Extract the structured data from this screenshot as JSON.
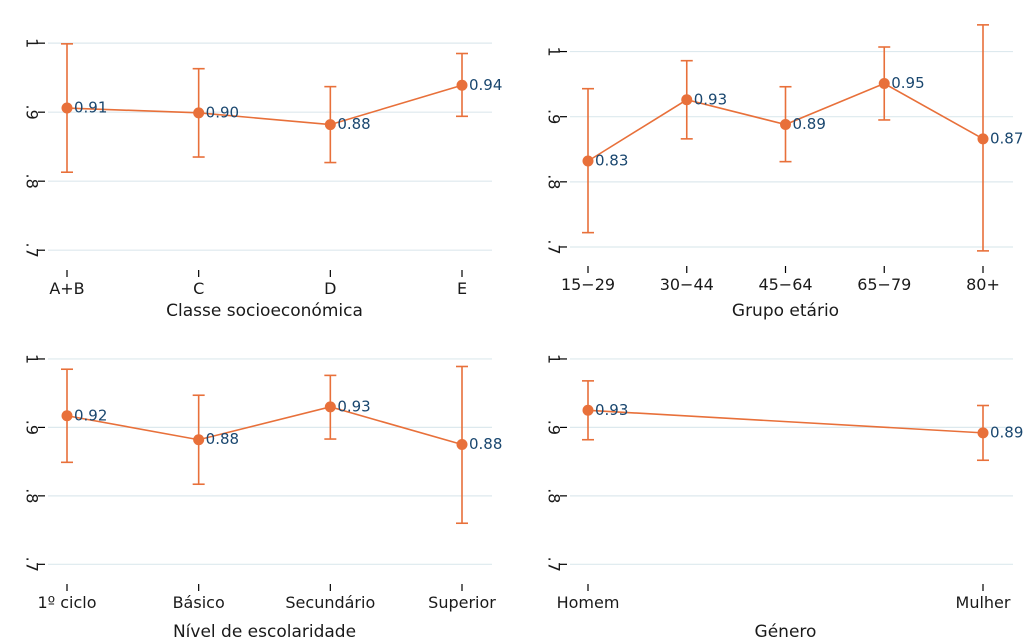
{
  "colors": {
    "series": "#e8703a",
    "label": "#1a476f",
    "grid": "#dde9ee",
    "axis": "#000000"
  },
  "chart_data": [
    {
      "type": "scatter",
      "xlabel": "Classe socioeconómica",
      "ylabel": "",
      "categories": [
        "A+B",
        "C",
        "D",
        "E"
      ],
      "values": [
        0.906,
        0.899,
        0.882,
        0.939
      ],
      "value_labels": [
        "0.91",
        "0.90",
        "0.88",
        "0.94"
      ],
      "ci_low": [
        0.813,
        0.835,
        0.827,
        0.894
      ],
      "ci_high": [
        0.999,
        0.963,
        0.937,
        0.985
      ],
      "yticks": [
        0.7,
        0.8,
        0.9,
        1.0
      ],
      "ytick_labels": [
        ".7",
        ".8",
        ".9",
        "1"
      ],
      "ylim": [
        0.68,
        1.035
      ],
      "grid": true,
      "connected": true
    },
    {
      "type": "scatter",
      "xlabel": "Grupo etário",
      "ylabel": "",
      "categories": [
        "15−29",
        "30−44",
        "45−64",
        "65−79",
        "80+"
      ],
      "values": [
        0.832,
        0.926,
        0.888,
        0.951,
        0.866
      ],
      "value_labels": [
        "0.83",
        "0.93",
        "0.89",
        "0.95",
        "0.87"
      ],
      "ci_low": [
        0.722,
        0.866,
        0.831,
        0.895,
        0.694
      ],
      "ci_high": [
        0.943,
        0.986,
        0.946,
        1.007,
        1.041
      ],
      "yticks": [
        0.7,
        0.8,
        0.9,
        1.0
      ],
      "ytick_labels": [
        ".7",
        ".8",
        ".9",
        "1"
      ],
      "ylim": [
        0.68,
        1.05
      ],
      "grid": true,
      "connected": true
    },
    {
      "type": "scatter",
      "xlabel": "Nível de escolaridade",
      "ylabel": "",
      "categories": [
        "1º ciclo",
        "Básico",
        "Secundário",
        "Superior"
      ],
      "values": [
        0.917,
        0.882,
        0.93,
        0.875
      ],
      "value_labels": [
        "0.92",
        "0.88",
        "0.93",
        "0.88"
      ],
      "ci_low": [
        0.849,
        0.817,
        0.883,
        0.76
      ],
      "ci_high": [
        0.985,
        0.947,
        0.976,
        0.989
      ],
      "yticks": [
        0.7,
        0.8,
        0.9,
        1.0
      ],
      "ytick_labels": [
        ".7",
        ".8",
        ".9",
        "1"
      ],
      "ylim": [
        0.68,
        1.035
      ],
      "grid": true,
      "connected": true
    },
    {
      "type": "scatter",
      "xlabel": "Género",
      "ylabel": "",
      "categories": [
        "Homem",
        "Mulher"
      ],
      "values": [
        0.925,
        0.892
      ],
      "value_labels": [
        "0.93",
        "0.89"
      ],
      "ci_low": [
        0.882,
        0.852
      ],
      "ci_high": [
        0.968,
        0.932
      ],
      "yticks": [
        0.7,
        0.8,
        0.9,
        1.0
      ],
      "ytick_labels": [
        ".7",
        ".8",
        ".9",
        "1"
      ],
      "ylim": [
        0.68,
        1.035
      ],
      "grid": true,
      "connected": true
    }
  ]
}
